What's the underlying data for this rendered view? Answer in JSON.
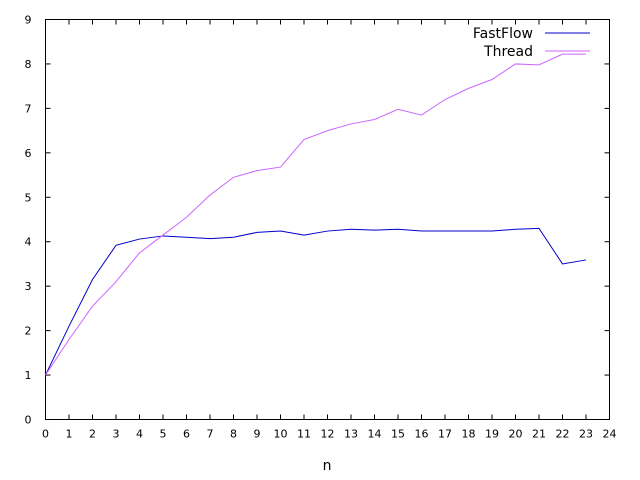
{
  "chart_data": {
    "type": "line",
    "xlabel": "n",
    "ylabel": "",
    "xlim": [
      0,
      24
    ],
    "ylim": [
      0,
      9
    ],
    "xticks": [
      0,
      1,
      2,
      3,
      4,
      5,
      6,
      7,
      8,
      9,
      10,
      11,
      12,
      13,
      14,
      15,
      16,
      17,
      18,
      19,
      20,
      21,
      22,
      23,
      24
    ],
    "yticks": [
      0,
      1,
      2,
      3,
      4,
      5,
      6,
      7,
      8,
      9
    ],
    "grid": false,
    "legend_position": "top-right",
    "x": [
      0,
      1,
      2,
      3,
      4,
      5,
      6,
      7,
      8,
      9,
      10,
      11,
      12,
      13,
      14,
      15,
      16,
      17,
      18,
      19,
      20,
      21,
      22,
      23
    ],
    "series": [
      {
        "name": "FastFlow",
        "color": "#0000cc",
        "values": [
          1.0,
          2.1,
          3.15,
          3.92,
          4.06,
          4.13,
          4.1,
          4.07,
          4.1,
          4.21,
          4.24,
          4.15,
          4.24,
          4.28,
          4.26,
          4.28,
          4.24,
          4.24,
          4.24,
          4.24,
          4.28,
          4.3,
          3.5,
          3.59
        ]
      },
      {
        "name": "Thread",
        "color": "#cc66ff",
        "values": [
          1.0,
          1.8,
          2.55,
          3.1,
          3.75,
          4.15,
          4.55,
          5.05,
          5.45,
          5.6,
          5.68,
          6.3,
          6.5,
          6.65,
          6.75,
          6.98,
          6.85,
          7.2,
          7.45,
          7.65,
          8.0,
          7.98,
          8.22,
          8.22
        ]
      }
    ]
  }
}
